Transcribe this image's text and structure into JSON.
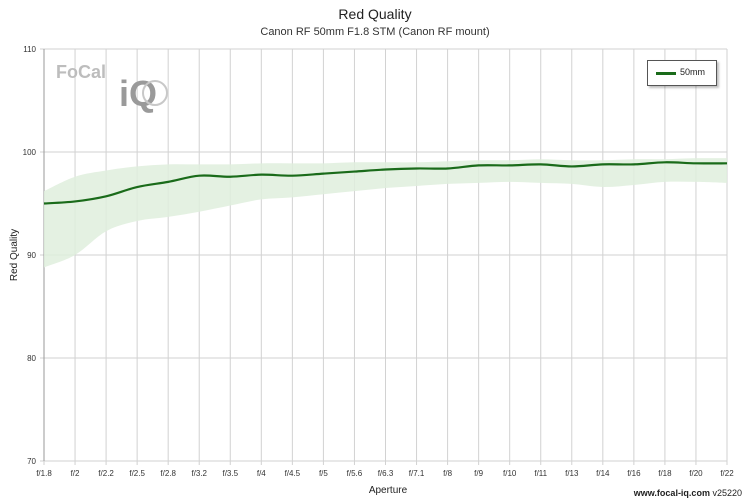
{
  "logo": {
    "word1": "FoCal",
    "word2": "iQ"
  },
  "footer": {
    "site": "www.focal-iq.com",
    "version": "v25220"
  },
  "colors": {
    "line": "#1a6b1a",
    "band": "#dfeedd",
    "grid": "#d2d2d2"
  },
  "chart_data": {
    "type": "line",
    "title": "Red Quality",
    "subtitle": "Canon RF 50mm F1.8 STM (Canon RF mount)",
    "xlabel": "Aperture",
    "ylabel": "Red Quality",
    "ylim": [
      70,
      110
    ],
    "yticks": [
      70,
      80,
      90,
      100,
      110
    ],
    "categories": [
      "f/1.8",
      "f/2",
      "f/2.2",
      "f/2.5",
      "f/2.8",
      "f/3.2",
      "f/3.5",
      "f/4",
      "f/4.5",
      "f/5",
      "f/5.6",
      "f/6.3",
      "f/7.1",
      "f/8",
      "f/9",
      "f/10",
      "f/11",
      "f/13",
      "f/14",
      "f/16",
      "f/18",
      "f/20",
      "f/22"
    ],
    "legend": "top-right",
    "grid": true,
    "series": [
      {
        "name": "50mm",
        "values": [
          95.0,
          95.2,
          95.7,
          96.6,
          97.1,
          97.7,
          97.6,
          97.8,
          97.7,
          97.9,
          98.1,
          98.3,
          98.4,
          98.4,
          98.7,
          98.7,
          98.8,
          98.6,
          98.8,
          98.8,
          99.0,
          98.9,
          98.9
        ],
        "band_upper": [
          96.2,
          97.6,
          98.2,
          98.6,
          98.8,
          98.8,
          98.8,
          98.9,
          98.9,
          98.9,
          99.0,
          99.0,
          99.0,
          99.1,
          99.2,
          99.2,
          99.3,
          99.2,
          99.2,
          99.3,
          99.3,
          99.4,
          99.4
        ],
        "band_lower": [
          88.8,
          90.0,
          92.3,
          93.3,
          93.7,
          94.2,
          94.8,
          95.4,
          95.6,
          95.9,
          96.2,
          96.5,
          96.7,
          96.9,
          97.0,
          97.1,
          97.0,
          96.9,
          96.6,
          96.8,
          97.1,
          97.1,
          97.0
        ]
      }
    ]
  }
}
